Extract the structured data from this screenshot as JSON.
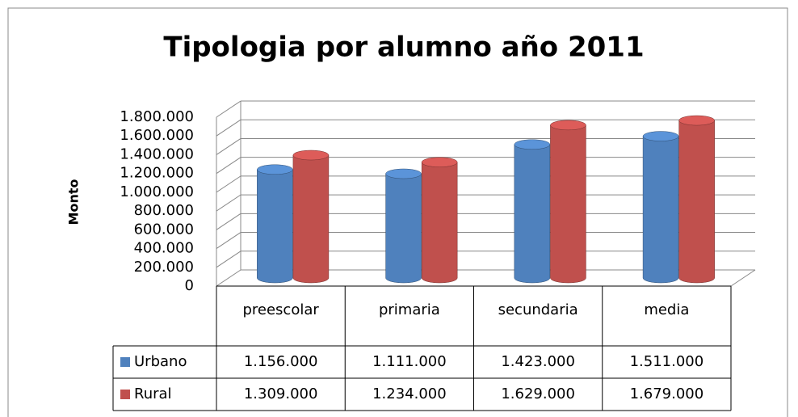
{
  "chart_data": {
    "type": "bar3d",
    "title": "Tipologia por alumno año 2011",
    "y_label": "Monto",
    "categories": [
      "preescolar",
      "primaria",
      "secundaria",
      "media"
    ],
    "series": [
      {
        "name": "Urbano",
        "color": "#4f81bd",
        "values": [
          1156000,
          1111000,
          1423000,
          1511000
        ],
        "value_labels": [
          "1.156.000",
          "1.111.000",
          "1.423.000",
          "1.511.000"
        ]
      },
      {
        "name": "Rural",
        "color": "#c0504d",
        "values": [
          1309000,
          1234000,
          1629000,
          1679000
        ],
        "value_labels": [
          "1.309.000",
          "1.234.000",
          "1.629.000",
          "1.679.000"
        ]
      }
    ],
    "ylim": [
      0,
      1800000
    ],
    "yticks": [
      0,
      {
        "value": 200000,
        "label": "200.000"
      },
      {
        "value": 400000,
        "label": "400.000"
      },
      {
        "value": 600000,
        "label": "600.000"
      },
      {
        "value": 800000,
        "label": "800.000"
      },
      {
        "value": 1000000,
        "label": "1.000.000"
      },
      {
        "value": 1200000,
        "label": "1.200.000"
      },
      {
        "value": 1400000,
        "label": "1.400.000"
      },
      {
        "value": 1600000,
        "label": "1.600.000"
      },
      {
        "value": 1800000,
        "label": "1.800.000"
      }
    ],
    "grid": true,
    "data_table": true
  }
}
